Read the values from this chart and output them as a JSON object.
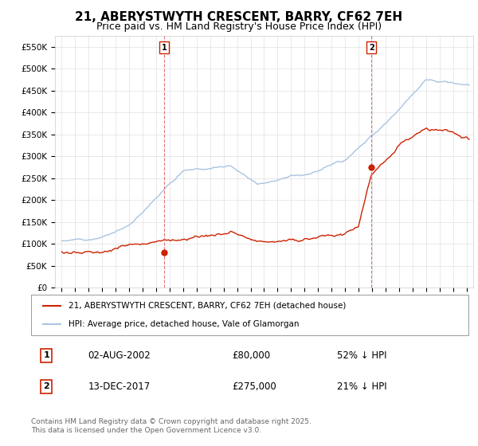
{
  "title": "21, ABERYSTWYTH CRESCENT, BARRY, CF62 7EH",
  "subtitle": "Price paid vs. HM Land Registry's House Price Index (HPI)",
  "hpi_color": "#aac4e0",
  "price_color": "#cc2200",
  "vline_color": "#dd6666",
  "background_color": "#ffffff",
  "plot_bg_color": "#ffffff",
  "ylim": [
    0,
    575000
  ],
  "yticks": [
    0,
    50000,
    100000,
    150000,
    200000,
    250000,
    300000,
    350000,
    400000,
    450000,
    500000,
    550000
  ],
  "ytick_labels": [
    "£0",
    "£50K",
    "£100K",
    "£150K",
    "£200K",
    "£250K",
    "£300K",
    "£350K",
    "£400K",
    "£450K",
    "£500K",
    "£550K"
  ],
  "xlim_start": 1994.5,
  "xlim_end": 2025.5,
  "transaction1_year": 2002.6,
  "transaction1_price": 80000,
  "transaction1_label": "1",
  "transaction1_date": "02-AUG-2002",
  "transaction1_pct": "52% ↓ HPI",
  "transaction2_year": 2017.95,
  "transaction2_price": 275000,
  "transaction2_label": "2",
  "transaction2_date": "13-DEC-2017",
  "transaction2_pct": "21% ↓ HPI",
  "legend_line1": "21, ABERYSTWYTH CRESCENT, BARRY, CF62 7EH (detached house)",
  "legend_line2": "HPI: Average price, detached house, Vale of Glamorgan",
  "footer": "Contains HM Land Registry data © Crown copyright and database right 2025.\nThis data is licensed under the Open Government Licence v3.0.",
  "grid_color": "#e0e0e0",
  "title_fontsize": 11,
  "subtitle_fontsize": 9
}
